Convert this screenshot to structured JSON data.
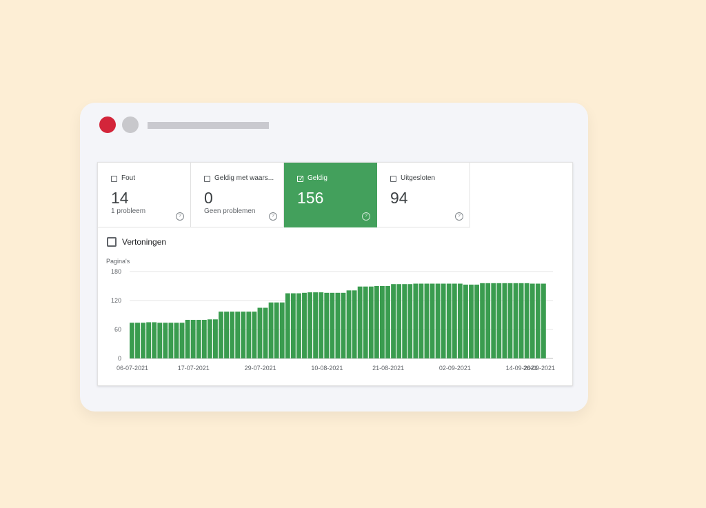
{
  "cards": [
    {
      "label": "Fout",
      "value": "14",
      "sub": "1 probleem",
      "checked": false,
      "active": false
    },
    {
      "label": "Geldig met waars...",
      "value": "0",
      "sub": "Geen problemen",
      "checked": false,
      "active": false
    },
    {
      "label": "Geldig",
      "value": "156",
      "sub": "",
      "checked": true,
      "active": true
    },
    {
      "label": "Uitgesloten",
      "value": "94",
      "sub": "",
      "checked": false,
      "active": false
    }
  ],
  "impressions_toggle": {
    "label": "Vertoningen",
    "checked": false
  },
  "colors": {
    "accent": "#43a05c",
    "bar": "#3a9c4f",
    "background": "#fdeed5",
    "close_dot": "#d3253a"
  },
  "chart_data": {
    "type": "bar",
    "ylabel": "Pagina's",
    "ylim": [
      0,
      180
    ],
    "yticks": [
      0,
      60,
      120,
      180
    ],
    "xticklabels": [
      "06-07-2021",
      "17-07-2021",
      "29-07-2021",
      "10-08-2021",
      "21-08-2021",
      "02-09-2021",
      "14-09-2021",
      "26-09-2021"
    ],
    "values": [
      74,
      74,
      74,
      75,
      75,
      74,
      74,
      74,
      74,
      74,
      80,
      80,
      80,
      80,
      81,
      81,
      97,
      97,
      97,
      97,
      97,
      97,
      97,
      105,
      105,
      116,
      116,
      116,
      135,
      135,
      135,
      136,
      137,
      137,
      137,
      136,
      136,
      136,
      136,
      141,
      141,
      149,
      149,
      149,
      150,
      150,
      150,
      154,
      154,
      154,
      154,
      155,
      155,
      155,
      155,
      155,
      155,
      155,
      155,
      155,
      153,
      153,
      153,
      156,
      156,
      156,
      156,
      156,
      156,
      156,
      156,
      156,
      155,
      155,
      155
    ]
  }
}
